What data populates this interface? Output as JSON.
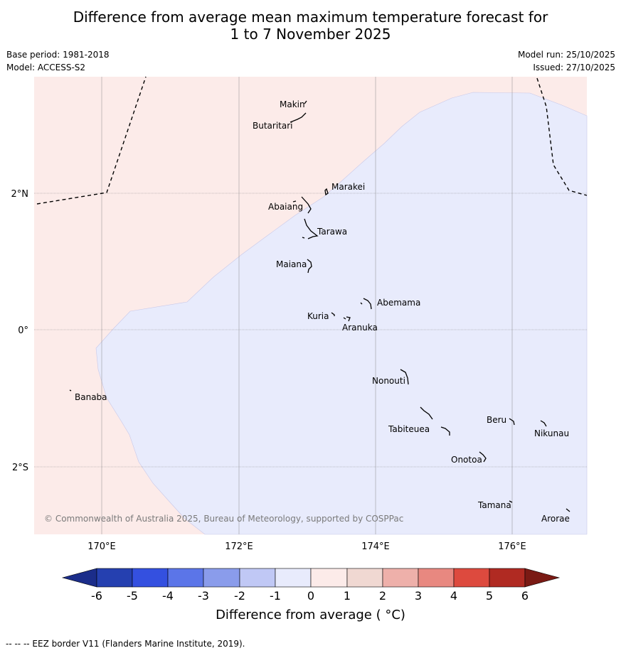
{
  "title": {
    "line1": "Difference from average mean maximum temperature forecast for",
    "line2": "1 to 7 November 2025"
  },
  "meta_left": {
    "base_period": "Base period: 1981-2018",
    "model": "Model: ACCESS-S2"
  },
  "meta_right": {
    "model_run": "Model run: 25/10/2025",
    "issued": "Issued: 27/10/2025"
  },
  "map": {
    "lat_labels": [
      "2°N",
      "0°",
      "2°S"
    ],
    "lon_labels": [
      "170°E",
      "172°E",
      "174°E",
      "176°E"
    ],
    "places": [
      "Makin",
      "Butaritari",
      "Marakei",
      "Abaiang",
      "Tarawa",
      "Maiana",
      "Abemama",
      "Kuria",
      "Aranuka",
      "Banaba",
      "Nonouti",
      "Beru",
      "Tabiteuea",
      "Nikunau",
      "Onotoa",
      "Tamana",
      "Arorae"
    ],
    "credit": "© Commonwealth of Australia 2025, Bureau of Meteorology, supported by COSPPac",
    "colors": {
      "warm_region": "#fcebe9",
      "cool_region": "#e8ebfc"
    }
  },
  "colorbar": {
    "ticks": [
      "-6",
      "-5",
      "-4",
      "-3",
      "-2",
      "-1",
      "0",
      "1",
      "2",
      "3",
      "4",
      "5",
      "6"
    ],
    "colors": [
      "#1b2d8a",
      "#2540b0",
      "#3450e0",
      "#5b75e8",
      "#8a9ceb",
      "#c0c8f5",
      "#e8ebfc",
      "#fcebe9",
      "#f0d8d2",
      "#eeb0aa",
      "#e88880",
      "#dd4a3e",
      "#b02a22",
      "#7a1a14"
    ],
    "title": "Difference from average ( °C)"
  },
  "eez_note": "--  --  -- EEZ border V11 (Flanders Marine Institute, 2019)."
}
